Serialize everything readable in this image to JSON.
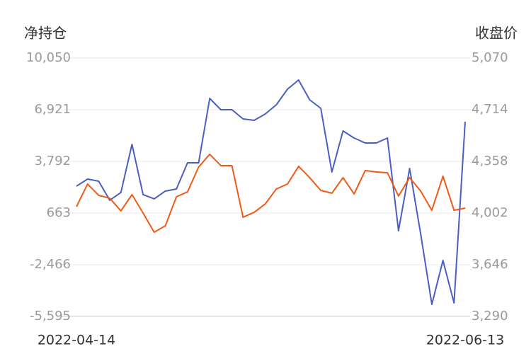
{
  "chart_data": {
    "type": "line",
    "y_title": "净持仓",
    "y2_title": "收盘价",
    "categories": [
      "2022-04-14",
      null,
      null,
      null,
      null,
      null,
      null,
      null,
      null,
      null,
      null,
      null,
      null,
      null,
      null,
      null,
      null,
      null,
      null,
      null,
      null,
      null,
      null,
      null,
      null,
      null,
      null,
      null,
      null,
      null,
      null,
      null,
      null,
      null,
      null,
      "2022-06-13"
    ],
    "series": [
      {
        "name": "净持仓",
        "color": "#4a5fc1",
        "axis": "y",
        "values": [
          2292,
          2721,
          2592,
          1435,
          1907,
          4821,
          1778,
          1521,
          1993,
          2121,
          3707,
          3707,
          7607,
          6921,
          6921,
          6364,
          6278,
          6664,
          7221,
          8164,
          8721,
          7521,
          7007,
          3150,
          5636,
          5207,
          4907,
          4907,
          5207,
          -408,
          3364,
          -622,
          -4865,
          -2208,
          -4779,
          6193
        ]
      },
      {
        "name": "收盘价",
        "color": "#f05a16",
        "axis": "y2",
        "values": [
          4046,
          4202,
          4124,
          4104,
          4017,
          4129,
          4002,
          3870,
          3914,
          4114,
          4148,
          4319,
          4407,
          4329,
          4329,
          3973,
          4007,
          4065,
          4168,
          4202,
          4324,
          4246,
          4158,
          4139,
          4246,
          4134,
          4295,
          4285,
          4280,
          4119,
          4246,
          4153,
          4021,
          4256,
          4021,
          4036
        ]
      }
    ],
    "ylim": [
      -5595,
      10050
    ],
    "yticks": [
      {
        "value": 10050,
        "label": "10,050"
      },
      {
        "value": 6921,
        "label": "6,921"
      },
      {
        "value": 3792,
        "label": "3,792"
      },
      663,
      {
        "value": -2466,
        "label": "-2,466"
      },
      {
        "value": -5595,
        "label": "-5,595"
      }
    ],
    "y2lim": [
      3290,
      5070
    ],
    "y2ticks": [
      {
        "value": 5070,
        "label": "5,070"
      },
      {
        "value": 4714,
        "label": "4,714"
      },
      {
        "value": 4358,
        "label": "4,358"
      },
      {
        "value": 4002,
        "label": "4,002"
      },
      {
        "value": 3646,
        "label": "3,646"
      },
      {
        "value": 3290,
        "label": "3,290"
      }
    ],
    "grid": true
  }
}
